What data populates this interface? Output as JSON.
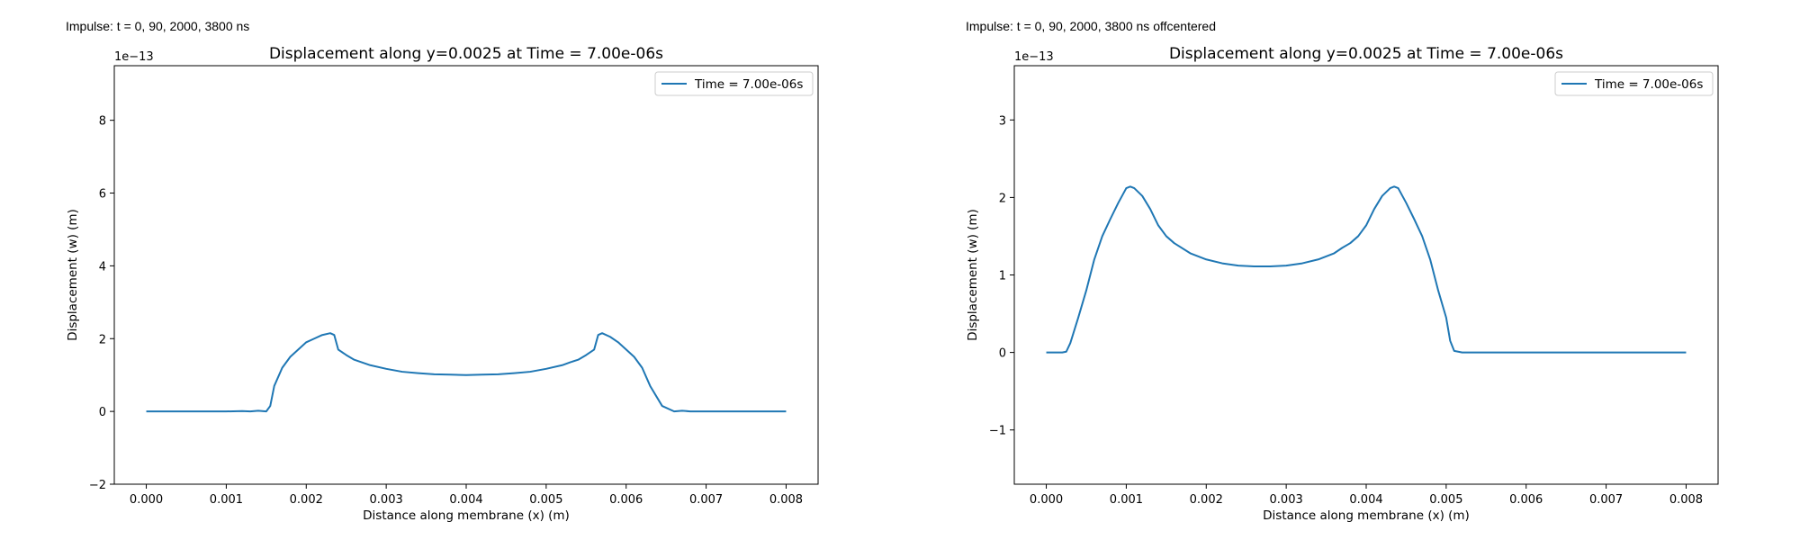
{
  "chart_data": [
    {
      "type": "line",
      "caption": "Impulse: t = 0, 90, 2000, 3800 ns",
      "title": "Displacement along y=0.0025 at Time = 7.00e-06s",
      "xlabel": "Distance along membrane (x) (m)",
      "ylabel": "Displacement (w) (m)",
      "offset_text": "1e−13",
      "xlim": [
        -0.0004,
        0.0084
      ],
      "ylim": [
        -2,
        9.5
      ],
      "xticks": [
        0,
        0.001,
        0.002,
        0.003,
        0.004,
        0.005,
        0.006,
        0.007,
        0.008
      ],
      "xtick_labels": [
        "0.000",
        "0.001",
        "0.002",
        "0.003",
        "0.004",
        "0.005",
        "0.006",
        "0.007",
        "0.008"
      ],
      "yticks": [
        -2,
        0,
        2,
        4,
        6,
        8
      ],
      "ytick_labels": [
        "−2",
        "0",
        "2",
        "4",
        "6",
        "8"
      ],
      "grid": false,
      "legend_position": "top-right",
      "line_color": "#1f77b4",
      "series": [
        {
          "name": "Time = 7.00e-06s",
          "points": [
            [
              0,
              0
            ],
            [
              0.0005,
              0
            ],
            [
              0.001,
              0
            ],
            [
              0.0012,
              0.01
            ],
            [
              0.0013,
              0
            ],
            [
              0.0014,
              0.02
            ],
            [
              0.0015,
              0
            ],
            [
              0.00155,
              0.15
            ],
            [
              0.0016,
              0.7
            ],
            [
              0.0017,
              1.2
            ],
            [
              0.0018,
              1.5
            ],
            [
              0.0019,
              1.7
            ],
            [
              0.002,
              1.9
            ],
            [
              0.0021,
              2.0
            ],
            [
              0.0022,
              2.1
            ],
            [
              0.0023,
              2.15
            ],
            [
              0.00235,
              2.1
            ],
            [
              0.0024,
              1.7
            ],
            [
              0.0025,
              1.55
            ],
            [
              0.0026,
              1.42
            ],
            [
              0.0028,
              1.27
            ],
            [
              0.003,
              1.17
            ],
            [
              0.0032,
              1.09
            ],
            [
              0.0034,
              1.05
            ],
            [
              0.0036,
              1.02
            ],
            [
              0.0038,
              1.01
            ],
            [
              0.004,
              1.0
            ],
            [
              0.0042,
              1.01
            ],
            [
              0.0044,
              1.02
            ],
            [
              0.0046,
              1.05
            ],
            [
              0.0048,
              1.09
            ],
            [
              0.005,
              1.17
            ],
            [
              0.0052,
              1.27
            ],
            [
              0.0053,
              1.35
            ],
            [
              0.0054,
              1.42
            ],
            [
              0.0055,
              1.55
            ],
            [
              0.0056,
              1.7
            ],
            [
              0.00565,
              2.1
            ],
            [
              0.0057,
              2.15
            ],
            [
              0.0058,
              2.05
            ],
            [
              0.0059,
              1.9
            ],
            [
              0.006,
              1.7
            ],
            [
              0.0061,
              1.5
            ],
            [
              0.0062,
              1.2
            ],
            [
              0.0063,
              0.7
            ],
            [
              0.00645,
              0.15
            ],
            [
              0.0066,
              0
            ],
            [
              0.0067,
              0.02
            ],
            [
              0.0068,
              0
            ],
            [
              0.007,
              0
            ],
            [
              0.0075,
              0
            ],
            [
              0.008,
              0
            ]
          ]
        }
      ]
    },
    {
      "type": "line",
      "caption": "Impulse: t = 0, 90, 2000, 3800 ns offcentered",
      "title": "Displacement along y=0.0025 at Time = 7.00e-06s",
      "xlabel": "Distance along membrane (x) (m)",
      "ylabel": "Displacement (w) (m)",
      "offset_text": "1e−13",
      "xlim": [
        -0.0004,
        0.0084
      ],
      "ylim": [
        -1.7,
        3.7
      ],
      "xticks": [
        0,
        0.001,
        0.002,
        0.003,
        0.004,
        0.005,
        0.006,
        0.007,
        0.008
      ],
      "xtick_labels": [
        "0.000",
        "0.001",
        "0.002",
        "0.003",
        "0.004",
        "0.005",
        "0.006",
        "0.007",
        "0.008"
      ],
      "yticks": [
        -1,
        0,
        1,
        2,
        3
      ],
      "ytick_labels": [
        "−1",
        "0",
        "1",
        "2",
        "3"
      ],
      "grid": false,
      "legend_position": "top-right",
      "line_color": "#1f77b4",
      "series": [
        {
          "name": "Time = 7.00e-06s",
          "points": [
            [
              0,
              0
            ],
            [
              0.0002,
              0
            ],
            [
              0.00025,
              0.01
            ],
            [
              0.0003,
              0.12
            ],
            [
              0.0004,
              0.45
            ],
            [
              0.0005,
              0.8
            ],
            [
              0.0006,
              1.2
            ],
            [
              0.0007,
              1.5
            ],
            [
              0.0008,
              1.72
            ],
            [
              0.0009,
              1.93
            ],
            [
              0.001,
              2.12
            ],
            [
              0.00105,
              2.14
            ],
            [
              0.0011,
              2.12
            ],
            [
              0.0012,
              2.02
            ],
            [
              0.0013,
              1.85
            ],
            [
              0.0014,
              1.64
            ],
            [
              0.0015,
              1.5
            ],
            [
              0.0016,
              1.41
            ],
            [
              0.0018,
              1.28
            ],
            [
              0.002,
              1.2
            ],
            [
              0.0022,
              1.15
            ],
            [
              0.0024,
              1.12
            ],
            [
              0.0026,
              1.11
            ],
            [
              0.0028,
              1.11
            ],
            [
              0.003,
              1.12
            ],
            [
              0.0032,
              1.15
            ],
            [
              0.0034,
              1.2
            ],
            [
              0.0036,
              1.28
            ],
            [
              0.0037,
              1.35
            ],
            [
              0.0038,
              1.41
            ],
            [
              0.0039,
              1.5
            ],
            [
              0.004,
              1.64
            ],
            [
              0.0041,
              1.85
            ],
            [
              0.0042,
              2.02
            ],
            [
              0.0043,
              2.12
            ],
            [
              0.00435,
              2.14
            ],
            [
              0.0044,
              2.12
            ],
            [
              0.0045,
              1.93
            ],
            [
              0.0046,
              1.72
            ],
            [
              0.0047,
              1.5
            ],
            [
              0.0048,
              1.2
            ],
            [
              0.0049,
              0.8
            ],
            [
              0.005,
              0.45
            ],
            [
              0.00505,
              0.15
            ],
            [
              0.0051,
              0.02
            ],
            [
              0.0052,
              0
            ],
            [
              0.006,
              0
            ],
            [
              0.007,
              0
            ],
            [
              0.008,
              0
            ]
          ]
        }
      ]
    }
  ]
}
